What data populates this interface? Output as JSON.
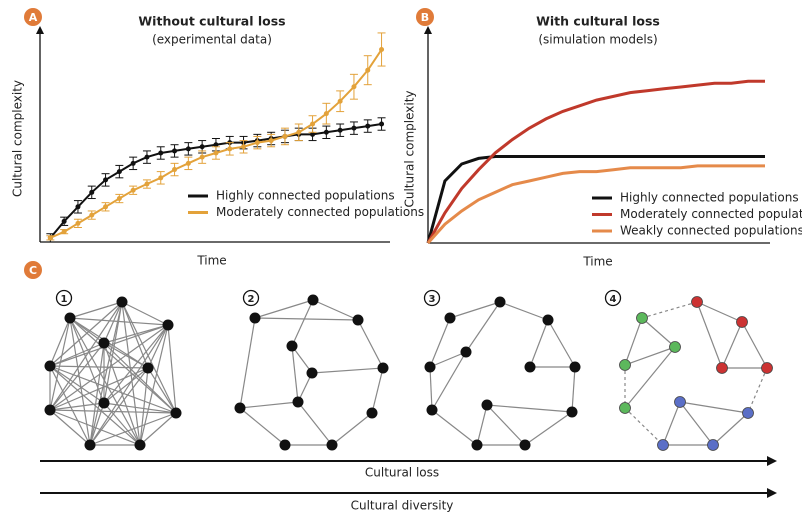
{
  "chart_data": [
    {
      "type": "line",
      "panel": "A",
      "title": "Without cultural loss",
      "subtitle": "(experimental data)",
      "x_label": "Time",
      "y_label": "Cultural complexity",
      "xlim": [
        0,
        100
      ],
      "ylim": [
        0,
        100
      ],
      "x": [
        3,
        7,
        11,
        15,
        19,
        23,
        27,
        31,
        35,
        39,
        43,
        47,
        51,
        55,
        59,
        63,
        67,
        71,
        75,
        79,
        83,
        87,
        91,
        95,
        99
      ],
      "series": [
        {
          "name": "Highly connected populations",
          "color": "#111111",
          "values": [
            2,
            10,
            17,
            24,
            30,
            34,
            38,
            41,
            43,
            44,
            45,
            46,
            47,
            48,
            48,
            49,
            50,
            51,
            52,
            52,
            53,
            54,
            55,
            56,
            57
          ],
          "errors": [
            2,
            2,
            3,
            3,
            3,
            3,
            3,
            3,
            3,
            3,
            3,
            3,
            3,
            3,
            3,
            3,
            3,
            3,
            3,
            3,
            3,
            3,
            3,
            3,
            3
          ]
        },
        {
          "name": "Moderately connected populations",
          "color": "#e3a23a",
          "values": [
            2,
            5,
            9,
            13,
            17,
            21,
            25,
            28,
            31,
            35,
            38,
            41,
            43,
            45,
            46,
            48,
            49,
            51,
            53,
            57,
            62,
            68,
            75,
            83,
            93
          ],
          "errors": [
            1,
            1,
            2,
            2,
            2,
            2,
            2,
            2,
            3,
            3,
            3,
            3,
            3,
            3,
            3,
            3,
            3,
            4,
            4,
            4,
            5,
            5,
            6,
            7,
            8
          ]
        }
      ]
    },
    {
      "type": "line",
      "panel": "B",
      "title": "With cultural loss",
      "subtitle": "(simulation models)",
      "x_label": "Time",
      "y_label": "Cultural complexity",
      "xlim": [
        0,
        100
      ],
      "ylim": [
        0,
        100
      ],
      "x": [
        0,
        5,
        10,
        15,
        20,
        25,
        30,
        35,
        40,
        45,
        50,
        55,
        60,
        65,
        70,
        75,
        80,
        85,
        90,
        95,
        100
      ],
      "series": [
        {
          "name": "Highly connected populations",
          "color": "#111111",
          "values": [
            0,
            33,
            42,
            45,
            46,
            46,
            46,
            46,
            46,
            46,
            46,
            46,
            46,
            46,
            46,
            46,
            46,
            46,
            46,
            46,
            46
          ]
        },
        {
          "name": "Moderately connected populations",
          "color": "#c0392b",
          "values": [
            0,
            16,
            29,
            39,
            48,
            55,
            61,
            66,
            70,
            73,
            76,
            78,
            80,
            81,
            82,
            83,
            84,
            85,
            85,
            86,
            86
          ]
        },
        {
          "name": "Weakly connected populations",
          "color": "#e58a4a",
          "values": [
            0,
            10,
            17,
            23,
            27,
            31,
            33,
            35,
            37,
            38,
            38,
            39,
            40,
            40,
            40,
            40,
            41,
            41,
            41,
            41,
            41
          ]
        }
      ]
    }
  ],
  "panel_c": {
    "label": "C",
    "networks": [
      "1",
      "2",
      "3",
      "4"
    ],
    "arrows": [
      "Cultural loss",
      "Cultural diversity"
    ]
  }
}
